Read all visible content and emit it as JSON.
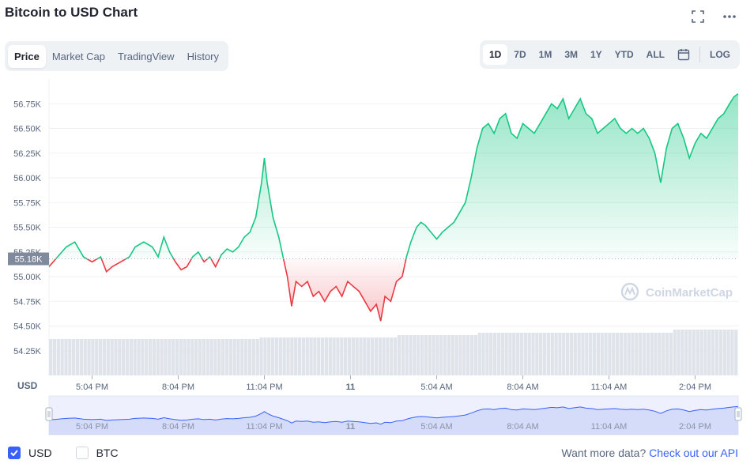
{
  "title": "Bitcoin to USD Chart",
  "tabs": [
    {
      "label": "Price",
      "active": true
    },
    {
      "label": "Market Cap",
      "active": false
    },
    {
      "label": "TradingView",
      "active": false
    },
    {
      "label": "History",
      "active": false
    }
  ],
  "ranges": [
    {
      "label": "1D",
      "active": true
    },
    {
      "label": "7D",
      "active": false
    },
    {
      "label": "1M",
      "active": false
    },
    {
      "label": "3M",
      "active": false
    },
    {
      "label": "1Y",
      "active": false
    },
    {
      "label": "YTD",
      "active": false
    },
    {
      "label": "ALL",
      "active": false
    }
  ],
  "log_label": "LOG",
  "watermark": "CoinMarketCap",
  "footer": {
    "usd_label": "USD",
    "btc_label": "BTC",
    "more_text": "Want more data?",
    "api_link": "Check out our API"
  },
  "colors": {
    "up": "#16c784",
    "down": "#ea3943",
    "accent": "#3861fb"
  },
  "chart_data": {
    "type": "area",
    "currency_label": "USD",
    "baseline_label": "55.18K",
    "baseline_value": 55.18,
    "ylim": [
      54.0,
      57.0
    ],
    "y_ticks": [
      54.25,
      54.5,
      54.75,
      55.0,
      55.25,
      55.5,
      55.75,
      56.0,
      56.25,
      56.5,
      56.75
    ],
    "y_tick_labels": [
      "54.25K",
      "54.50K",
      "54.75K",
      "55.00K",
      "55.25K",
      "55.50K",
      "55.75K",
      "56.00K",
      "56.25K",
      "56.50K",
      "56.75K"
    ],
    "x_tick_labels": [
      "5:04 PM",
      "8:04 PM",
      "11:04 PM",
      "11",
      "5:04 AM",
      "8:04 AM",
      "11:04 AM",
      "2:04 PM"
    ],
    "x_tick_hours": [
      1.5,
      4.5,
      7.5,
      10.5,
      13.5,
      16.5,
      19.5,
      22.5
    ],
    "x_range_hours": [
      0,
      24
    ],
    "grid": true,
    "series": [
      {
        "points": [
          [
            0.0,
            55.1
          ],
          [
            0.3,
            55.2
          ],
          [
            0.6,
            55.3
          ],
          [
            0.9,
            55.35
          ],
          [
            1.2,
            55.2
          ],
          [
            1.5,
            55.15
          ],
          [
            1.8,
            55.2
          ],
          [
            2.0,
            55.05
          ],
          [
            2.2,
            55.1
          ],
          [
            2.5,
            55.15
          ],
          [
            2.8,
            55.2
          ],
          [
            3.0,
            55.3
          ],
          [
            3.3,
            55.35
          ],
          [
            3.6,
            55.3
          ],
          [
            3.8,
            55.2
          ],
          [
            4.0,
            55.4
          ],
          [
            4.2,
            55.25
          ],
          [
            4.4,
            55.15
          ],
          [
            4.6,
            55.07
          ],
          [
            4.8,
            55.1
          ],
          [
            5.0,
            55.2
          ],
          [
            5.2,
            55.25
          ],
          [
            5.4,
            55.15
          ],
          [
            5.6,
            55.2
          ],
          [
            5.8,
            55.1
          ],
          [
            6.0,
            55.22
          ],
          [
            6.2,
            55.28
          ],
          [
            6.4,
            55.25
          ],
          [
            6.6,
            55.3
          ],
          [
            6.8,
            55.4
          ],
          [
            7.0,
            55.45
          ],
          [
            7.2,
            55.6
          ],
          [
            7.4,
            55.95
          ],
          [
            7.5,
            56.2
          ],
          [
            7.6,
            55.95
          ],
          [
            7.8,
            55.6
          ],
          [
            8.0,
            55.4
          ],
          [
            8.15,
            55.2
          ],
          [
            8.3,
            55.0
          ],
          [
            8.45,
            54.7
          ],
          [
            8.6,
            54.95
          ],
          [
            8.8,
            54.9
          ],
          [
            9.0,
            54.95
          ],
          [
            9.2,
            54.8
          ],
          [
            9.4,
            54.85
          ],
          [
            9.6,
            54.75
          ],
          [
            9.8,
            54.85
          ],
          [
            10.0,
            54.9
          ],
          [
            10.2,
            54.8
          ],
          [
            10.4,
            54.95
          ],
          [
            10.6,
            54.9
          ],
          [
            10.8,
            54.85
          ],
          [
            11.0,
            54.75
          ],
          [
            11.2,
            54.65
          ],
          [
            11.4,
            54.72
          ],
          [
            11.55,
            54.55
          ],
          [
            11.7,
            54.8
          ],
          [
            11.9,
            54.75
          ],
          [
            12.1,
            54.95
          ],
          [
            12.3,
            55.0
          ],
          [
            12.45,
            55.2
          ],
          [
            12.6,
            55.35
          ],
          [
            12.8,
            55.5
          ],
          [
            12.95,
            55.55
          ],
          [
            13.1,
            55.52
          ],
          [
            13.3,
            55.45
          ],
          [
            13.5,
            55.38
          ],
          [
            13.7,
            55.45
          ],
          [
            13.9,
            55.5
          ],
          [
            14.1,
            55.55
          ],
          [
            14.3,
            55.65
          ],
          [
            14.5,
            55.75
          ],
          [
            14.7,
            56.0
          ],
          [
            14.9,
            56.3
          ],
          [
            15.1,
            56.5
          ],
          [
            15.3,
            56.55
          ],
          [
            15.5,
            56.45
          ],
          [
            15.7,
            56.6
          ],
          [
            15.9,
            56.65
          ],
          [
            16.1,
            56.45
          ],
          [
            16.3,
            56.4
          ],
          [
            16.5,
            56.55
          ],
          [
            16.7,
            56.5
          ],
          [
            16.9,
            56.45
          ],
          [
            17.1,
            56.55
          ],
          [
            17.3,
            56.65
          ],
          [
            17.5,
            56.75
          ],
          [
            17.7,
            56.7
          ],
          [
            17.9,
            56.8
          ],
          [
            18.1,
            56.6
          ],
          [
            18.3,
            56.7
          ],
          [
            18.5,
            56.8
          ],
          [
            18.7,
            56.65
          ],
          [
            18.9,
            56.6
          ],
          [
            19.1,
            56.45
          ],
          [
            19.3,
            56.5
          ],
          [
            19.5,
            56.55
          ],
          [
            19.7,
            56.6
          ],
          [
            19.9,
            56.5
          ],
          [
            20.1,
            56.45
          ],
          [
            20.3,
            56.5
          ],
          [
            20.5,
            56.45
          ],
          [
            20.7,
            56.5
          ],
          [
            20.9,
            56.4
          ],
          [
            21.1,
            56.25
          ],
          [
            21.3,
            55.95
          ],
          [
            21.5,
            56.3
          ],
          [
            21.7,
            56.5
          ],
          [
            21.9,
            56.55
          ],
          [
            22.1,
            56.4
          ],
          [
            22.3,
            56.2
          ],
          [
            22.5,
            56.35
          ],
          [
            22.7,
            56.45
          ],
          [
            22.9,
            56.4
          ],
          [
            23.1,
            56.5
          ],
          [
            23.3,
            56.6
          ],
          [
            23.5,
            56.65
          ],
          [
            23.7,
            56.75
          ],
          [
            23.85,
            56.82
          ],
          [
            24.0,
            56.85
          ]
        ]
      }
    ]
  }
}
